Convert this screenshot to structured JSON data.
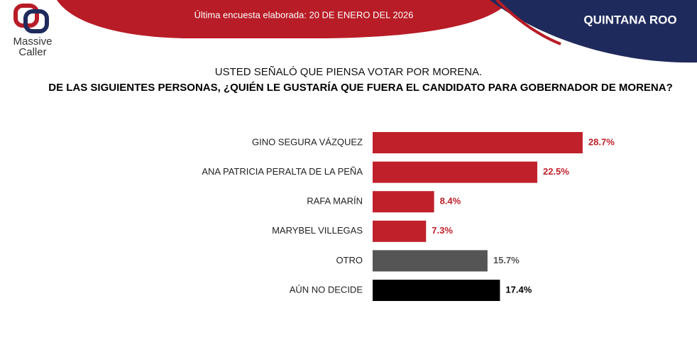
{
  "header": {
    "logo_lines": [
      "Massive",
      "Caller"
    ],
    "survey_date": "Última encuesta elaborada: 20 DE ENERO DEL 2026",
    "region": "QUINTANA ROO"
  },
  "chart_data": {
    "type": "bar",
    "orientation": "horizontal",
    "subtitle": "USTED SEÑALÓ QUE PIENSA VOTAR POR MORENA.",
    "title": "DE LAS SIGUIENTES PERSONAS, ¿QUIÉN LE GUSTARÍA QUE FUERA EL CANDIDATO PARA GOBERNADOR DE MORENA?",
    "categories": [
      "GINO SEGURA VÁZQUEZ",
      "ANA PATRICIA PERALTA DE LA PEÑA",
      "RAFA MARÍN",
      "MARYBEL VILLEGAS",
      "OTRO",
      "AÚN NO DECIDE"
    ],
    "values": [
      28.7,
      22.5,
      8.4,
      7.3,
      15.7,
      17.4
    ],
    "value_labels": [
      "28.7%",
      "22.5%",
      "8.4%",
      "7.3%",
      "15.7%",
      "17.4%"
    ],
    "colors": [
      "#c0202a",
      "#c0202a",
      "#c0202a",
      "#c0202a",
      "#555555",
      "#000000"
    ]
  }
}
